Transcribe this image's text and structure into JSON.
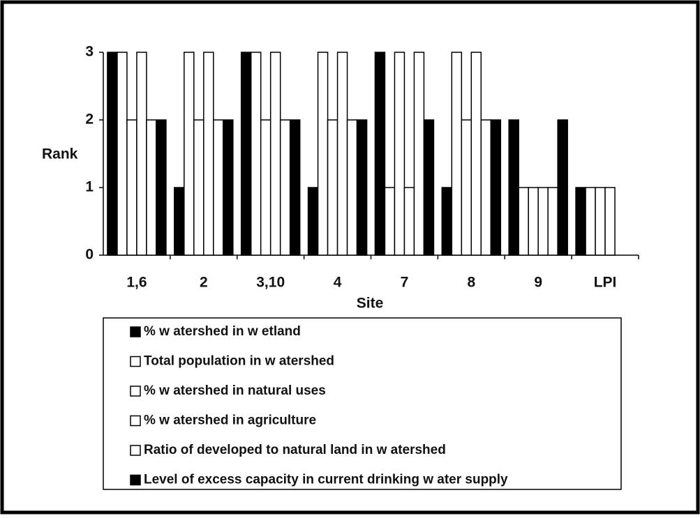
{
  "chart_data": {
    "type": "bar",
    "categories": [
      "1,6",
      "2",
      "3,10",
      "4",
      "7",
      "8",
      "9",
      "LPI"
    ],
    "series": [
      {
        "name": "% w atershed in w etland",
        "color": "#000000",
        "values": [
          3,
          1,
          3,
          1,
          3,
          1,
          2,
          1
        ]
      },
      {
        "name": "Total population in w atershed",
        "color": "#ffffff",
        "values": [
          3,
          3,
          3,
          3,
          1,
          3,
          1,
          1
        ]
      },
      {
        "name": "% w atershed in  natural uses",
        "color": "#ffffff",
        "values": [
          2,
          2,
          2,
          2,
          3,
          2,
          1,
          1
        ]
      },
      {
        "name": "% w atershed in agriculture",
        "color": "#ffffff",
        "values": [
          3,
          3,
          3,
          3,
          1,
          3,
          1,
          1
        ]
      },
      {
        "name": "Ratio of developed to natural land in w atershed",
        "color": "#ffffff",
        "values": [
          2,
          2,
          2,
          2,
          3,
          2,
          1,
          0
        ]
      },
      {
        "name": "Level of excess capacity in current drinking w ater supply",
        "color": "#000000",
        "values": [
          2,
          2,
          2,
          2,
          2,
          2,
          2,
          0
        ]
      }
    ],
    "x_label": "Site",
    "y_label": "Rank",
    "ylim": [
      0,
      3
    ],
    "yticks": [
      0,
      1,
      2,
      3
    ]
  }
}
